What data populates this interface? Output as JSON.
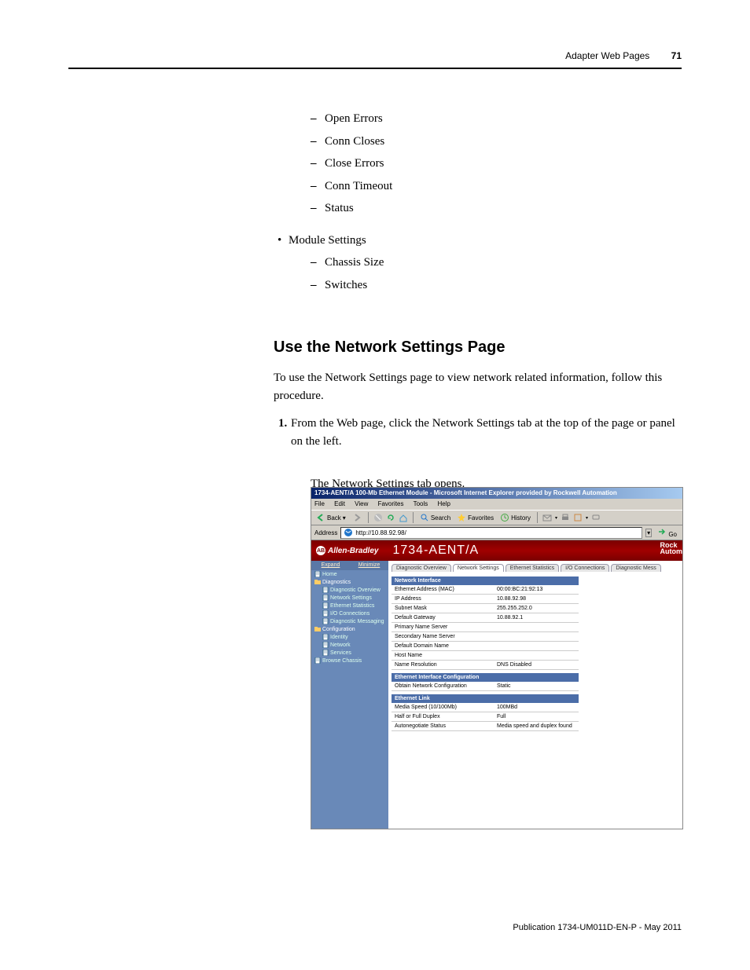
{
  "header": {
    "chapter": "Adapter Web Pages",
    "page_num": "71"
  },
  "bullets_top": [
    "Open Errors",
    "Conn Closes",
    "Close Errors",
    "Conn Timeout",
    "Status"
  ],
  "module_settings": {
    "label": "Module Settings",
    "items": [
      "Chassis Size",
      "Switches"
    ]
  },
  "heading": "Use the Network Settings Page",
  "intro": "To use the Network Settings page to view network related information, follow this procedure.",
  "step": {
    "num": "1.",
    "text": "From the Web page, click the Network Settings tab at the top of the page or panel on the left."
  },
  "step_result": "The Network Settings tab opens.",
  "screenshot": {
    "titlebar": "1734-AENT/A 100-Mb Ethernet Module - Microsoft Internet Explorer provided by Rockwell Automation",
    "menus": [
      "File",
      "Edit",
      "View",
      "Favorites",
      "Tools",
      "Help"
    ],
    "toolbar": {
      "back": "Back",
      "search": "Search",
      "favorites": "Favorites",
      "history": "History"
    },
    "address_label": "Address",
    "address_value": "http://10.88.92.98/",
    "go": "Go",
    "brand": {
      "logo": "Allen-Bradley",
      "logo_badge": "AB",
      "title": "1734-AENT/A",
      "right1": "Rock",
      "right2": "Autom"
    },
    "sidebar": {
      "expand": "Expand",
      "minimize": "Minimize",
      "items": [
        {
          "label": "Home",
          "type": "page"
        },
        {
          "label": "Diagnostics",
          "type": "folder"
        },
        {
          "label": "Diagnostic Overview",
          "type": "page",
          "sub": true
        },
        {
          "label": "Network Settings",
          "type": "page",
          "sub": true
        },
        {
          "label": "Ethernet Statistics",
          "type": "page",
          "sub": true
        },
        {
          "label": "I/O Connections",
          "type": "page",
          "sub": true
        },
        {
          "label": "Diagnostic Messaging",
          "type": "page",
          "sub": true
        },
        {
          "label": "Configuration",
          "type": "folder"
        },
        {
          "label": "Identity",
          "type": "page",
          "sub": true
        },
        {
          "label": "Network",
          "type": "page",
          "sub": true
        },
        {
          "label": "Services",
          "type": "page",
          "sub": true
        },
        {
          "label": "Browse Chassis",
          "type": "page"
        }
      ]
    },
    "tabs": [
      "Diagnostic Overview",
      "Network Settings",
      "Ethernet Statistics",
      "I/O Connections",
      "Diagnostic Mess"
    ],
    "sections": [
      {
        "title": "Network Interface",
        "rows": [
          {
            "k": "Ethernet Address (MAC)",
            "v": "00:00:BC:21:92:13"
          },
          {
            "k": "IP Address",
            "v": "10.88.92.98"
          },
          {
            "k": "Subnet Mask",
            "v": "255.255.252.0"
          },
          {
            "k": "Default Gateway",
            "v": "10.88.92.1"
          },
          {
            "k": "Primary Name Server",
            "v": ""
          },
          {
            "k": "Secondary Name Server",
            "v": ""
          },
          {
            "k": "Default Domain Name",
            "v": ""
          },
          {
            "k": "Host Name",
            "v": ""
          },
          {
            "k": "Name Resolution",
            "v": "DNS Disabled"
          }
        ]
      },
      {
        "title": "Ethernet Interface Configuration",
        "rows": [
          {
            "k": "Obtain Network Configuration",
            "v": "Static"
          }
        ]
      },
      {
        "title": "Ethernet Link",
        "rows": [
          {
            "k": "Media Speed (10/100Mb)",
            "v": "100MBd"
          },
          {
            "k": "Half or Full Duplex",
            "v": "Full"
          },
          {
            "k": "Autonegotiate Status",
            "v": "Media speed and duplex found"
          }
        ]
      }
    ]
  },
  "footer": "Publication 1734-UM011D-EN-P - May 2011"
}
